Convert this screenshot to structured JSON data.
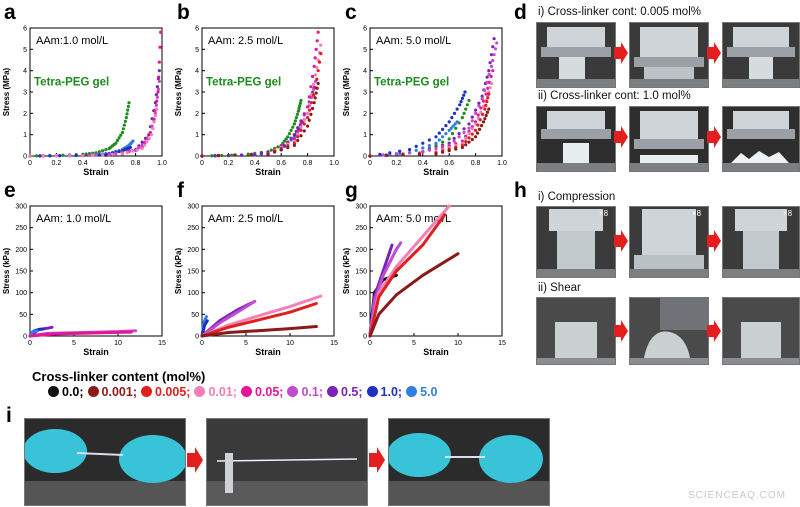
{
  "panel_letters": {
    "a": "a",
    "b": "b",
    "c": "c",
    "d": "d",
    "e": "e",
    "f": "f",
    "g": "g",
    "h": "h",
    "i": "i"
  },
  "legend": {
    "title": "Cross-linker content (mol%)",
    "items": [
      {
        "label": "0.0;",
        "color": "#111111"
      },
      {
        "label": "0.001;",
        "color": "#8b1a1a"
      },
      {
        "label": "0.005;",
        "color": "#e0201c"
      },
      {
        "label": "0.01;",
        "color": "#f47fb6"
      },
      {
        "label": "0.05;",
        "color": "#e5159a"
      },
      {
        "label": "0.1;",
        "color": "#c04ad0"
      },
      {
        "label": "0.5;",
        "color": "#7a22b8"
      },
      {
        "label": "1.0;",
        "color": "#1e2fc4"
      },
      {
        "label": "5.0",
        "color": "#2f7fe0"
      }
    ]
  },
  "photos": {
    "d_i_caption": "i) Cross-linker cont: 0.005 mol%",
    "d_ii_caption": "ii) Cross-linker cont: 1.0 mol%",
    "h_i_caption": "i) Compression",
    "h_ii_caption": "ii) Shear",
    "h_zoom": "×8"
  },
  "watermark": "SCIENCEAQ.COM",
  "chart_data": [
    {
      "id": "a",
      "type": "scatter",
      "annotation": "AAm:1.0 mol/L",
      "curve_label": "Tetra-PEG gel",
      "xlabel": "Strain",
      "ylabel": "Stress (MPa)",
      "xlim": [
        0,
        1
      ],
      "ylim": [
        0,
        6
      ],
      "xticks": [
        "0",
        "0.2",
        "0.4",
        "0.6",
        "0.8",
        "1.0"
      ],
      "yticks": [
        "0",
        "1",
        "2",
        "3",
        "4",
        "5",
        "6"
      ],
      "series": [
        {
          "name": "Tetra-PEG gel",
          "color": "#1f8a1f",
          "x": [
            0,
            0.2,
            0.4,
            0.5,
            0.6,
            0.65,
            0.7,
            0.73,
            0.75
          ],
          "y": [
            0,
            0.02,
            0.08,
            0.15,
            0.35,
            0.6,
            1.1,
            1.8,
            2.5
          ]
        },
        {
          "name": "5.0",
          "color": "#2f7fe0",
          "x": [
            0,
            0.3,
            0.5,
            0.6,
            0.7,
            0.75,
            0.78
          ],
          "y": [
            0,
            0.02,
            0.06,
            0.12,
            0.3,
            0.5,
            0.7
          ]
        },
        {
          "name": "1.0",
          "color": "#1e2fc4",
          "x": [
            0,
            0.3,
            0.5,
            0.6,
            0.7,
            0.76
          ],
          "y": [
            0,
            0.02,
            0.05,
            0.1,
            0.25,
            0.4
          ]
        },
        {
          "name": "0.5",
          "color": "#7a22b8",
          "x": [
            0,
            0.4,
            0.6,
            0.8,
            0.9,
            0.95,
            0.98
          ],
          "y": [
            0,
            0.03,
            0.08,
            0.3,
            1.0,
            2.5,
            4.0
          ]
        },
        {
          "name": "0.1",
          "color": "#c04ad0",
          "x": [
            0,
            0.4,
            0.6,
            0.8,
            0.9,
            0.95,
            0.98
          ],
          "y": [
            0,
            0.02,
            0.06,
            0.25,
            0.8,
            2.0,
            3.5
          ]
        },
        {
          "name": "0.05",
          "color": "#e5159a",
          "x": [
            0,
            0.4,
            0.7,
            0.85,
            0.93,
            0.97,
            0.99
          ],
          "y": [
            0,
            0.02,
            0.1,
            0.4,
            1.3,
            3.0,
            5.8
          ]
        },
        {
          "name": "0.01",
          "color": "#f47fb6",
          "x": [
            0,
            0.4,
            0.7,
            0.85,
            0.92,
            0.96
          ],
          "y": [
            0,
            0.02,
            0.1,
            0.35,
            1.0,
            2.2
          ]
        }
      ]
    },
    {
      "id": "b",
      "type": "scatter",
      "annotation": "AAm: 2.5 mol/L",
      "curve_label": "Tetra-PEG gel",
      "xlabel": "Strain",
      "ylabel": "Stress (MPa)",
      "xlim": [
        0,
        1
      ],
      "ylim": [
        0,
        6
      ],
      "xticks": [
        "0",
        "0.2",
        "0.4",
        "0.6",
        "0.8",
        "1.0"
      ],
      "yticks": [
        "0",
        "1",
        "2",
        "3",
        "4",
        "5",
        "6"
      ],
      "series": [
        {
          "name": "Tetra-PEG gel",
          "color": "#1f8a1f",
          "x": [
            0,
            0.3,
            0.5,
            0.6,
            0.65,
            0.7,
            0.73,
            0.75
          ],
          "y": [
            0,
            0.05,
            0.2,
            0.5,
            0.9,
            1.5,
            2.1,
            2.6
          ]
        },
        {
          "name": "5.0",
          "color": "#2f7fe0",
          "x": [
            0,
            0.4,
            0.6,
            0.7,
            0.74
          ],
          "y": [
            0,
            0.05,
            0.3,
            0.9,
            1.3
          ]
        },
        {
          "name": "1.0",
          "color": "#1e2fc4",
          "x": [
            0,
            0.4,
            0.6,
            0.7,
            0.76
          ],
          "y": [
            0,
            0.05,
            0.3,
            1.0,
            1.6
          ]
        },
        {
          "name": "0.5",
          "color": "#7a22b8",
          "x": [
            0,
            0.4,
            0.6,
            0.7,
            0.8,
            0.85
          ],
          "y": [
            0,
            0.05,
            0.3,
            1.0,
            2.3,
            3.2
          ]
        },
        {
          "name": "0.1",
          "color": "#c04ad0",
          "x": [
            0,
            0.5,
            0.7,
            0.8,
            0.86
          ],
          "y": [
            0,
            0.1,
            0.8,
            2.0,
            3.5
          ]
        },
        {
          "name": "0.05",
          "color": "#e5159a",
          "x": [
            0,
            0.5,
            0.7,
            0.8,
            0.85,
            0.88
          ],
          "y": [
            0,
            0.1,
            0.8,
            2.3,
            4.2,
            5.8
          ]
        },
        {
          "name": "0.01",
          "color": "#f47fb6",
          "x": [
            0,
            0.5,
            0.7,
            0.8,
            0.86,
            0.9
          ],
          "y": [
            0,
            0.1,
            0.7,
            2.0,
            3.8,
            5.2
          ]
        },
        {
          "name": "0.005",
          "color": "#e0201c",
          "x": [
            0,
            0.5,
            0.7,
            0.8,
            0.86,
            0.9
          ],
          "y": [
            0,
            0.1,
            0.6,
            1.8,
            3.2,
            4.8
          ]
        },
        {
          "name": "0.001",
          "color": "#8b1a1a",
          "x": [
            0,
            0.5,
            0.7,
            0.8,
            0.85,
            0.88
          ],
          "y": [
            0,
            0.08,
            0.5,
            1.4,
            2.5,
            3.4
          ]
        }
      ]
    },
    {
      "id": "c",
      "type": "scatter",
      "annotation": "AAm: 5.0 mol/L",
      "curve_label": "Tetra-PEG gel",
      "xlabel": "Strain",
      "ylabel": "Stress (MPa)",
      "xlim": [
        0,
        1
      ],
      "ylim": [
        0,
        6
      ],
      "xticks": [
        "0",
        "0.2",
        "0.4",
        "0.6",
        "0.8",
        "1.0"
      ],
      "yticks": [
        "0",
        "1",
        "2",
        "3",
        "4",
        "5",
        "6"
      ],
      "series": [
        {
          "name": "Tetra-PEG gel",
          "color": "#1f8a1f",
          "x": [
            0,
            0.4,
            0.6,
            0.7,
            0.75
          ],
          "y": [
            0,
            0.2,
            0.8,
            1.8,
            2.6
          ]
        },
        {
          "name": "5.0",
          "color": "#2f7fe0",
          "x": [
            0,
            0.3,
            0.5,
            0.6,
            0.66
          ],
          "y": [
            0,
            0.15,
            0.6,
            1.2,
            1.6
          ]
        },
        {
          "name": "1.0",
          "color": "#1e2fc4",
          "x": [
            0,
            0.3,
            0.5,
            0.6,
            0.68,
            0.72
          ],
          "y": [
            0,
            0.3,
            0.9,
            1.6,
            2.4,
            3.0
          ]
        },
        {
          "name": "0.5",
          "color": "#7a22b8",
          "x": [
            0,
            0.4,
            0.6,
            0.75,
            0.85,
            0.9,
            0.94
          ],
          "y": [
            0,
            0.2,
            0.6,
            1.5,
            2.8,
            4.0,
            5.5
          ]
        },
        {
          "name": "0.1",
          "color": "#c04ad0",
          "x": [
            0,
            0.4,
            0.6,
            0.75,
            0.85,
            0.92,
            0.96
          ],
          "y": [
            0,
            0.2,
            0.5,
            1.3,
            2.7,
            4.2,
            5.3
          ]
        },
        {
          "name": "0.05",
          "color": "#e5159a",
          "x": [
            0,
            0.5,
            0.7,
            0.8,
            0.88,
            0.93
          ],
          "y": [
            0,
            0.2,
            0.7,
            1.6,
            2.9,
            4.0
          ]
        },
        {
          "name": "0.01",
          "color": "#f47fb6",
          "x": [
            0,
            0.5,
            0.7,
            0.8,
            0.88,
            0.92
          ],
          "y": [
            0,
            0.2,
            0.6,
            1.5,
            2.6,
            3.4
          ]
        },
        {
          "name": "0.005",
          "color": "#e0201c",
          "x": [
            0,
            0.5,
            0.7,
            0.8,
            0.87,
            0.9
          ],
          "y": [
            0,
            0.15,
            0.5,
            1.2,
            2.2,
            2.9
          ]
        },
        {
          "name": "0.001",
          "color": "#8b1a1a",
          "x": [
            0,
            0.5,
            0.7,
            0.8,
            0.86,
            0.9
          ],
          "y": [
            0,
            0.1,
            0.4,
            0.9,
            1.6,
            2.2
          ]
        }
      ]
    },
    {
      "id": "e",
      "type": "line",
      "annotation": "AAm: 1.0 mol/L",
      "xlabel": "Strain",
      "ylabel": "Stress (kPa)",
      "xlim": [
        0,
        15
      ],
      "ylim": [
        0,
        300
      ],
      "xticks": [
        "0",
        "5",
        "10",
        "15"
      ],
      "yticks": [
        "0",
        "50",
        "100",
        "150",
        "200",
        "250",
        "300"
      ],
      "series": [
        {
          "name": "0.5",
          "color": "#7a22b8",
          "x": [
            0,
            1,
            2,
            2.5
          ],
          "y": [
            0,
            15,
            18,
            20
          ]
        },
        {
          "name": "1.0",
          "color": "#1e2fc4",
          "x": [
            0,
            0.5,
            1,
            1.5
          ],
          "y": [
            0,
            12,
            15,
            16
          ]
        },
        {
          "name": "5.0",
          "color": "#2f7fe0",
          "x": [
            0,
            0.3,
            0.8
          ],
          "y": [
            0,
            10,
            12
          ]
        },
        {
          "name": "0.1",
          "color": "#c04ad0",
          "x": [
            0,
            2,
            6,
            10,
            12
          ],
          "y": [
            0,
            6,
            8,
            10,
            12
          ]
        },
        {
          "name": "0.05",
          "color": "#e5159a",
          "x": [
            0,
            3,
            7,
            11.5
          ],
          "y": [
            0,
            5,
            7,
            9
          ]
        }
      ]
    },
    {
      "id": "f",
      "type": "line",
      "annotation": "AAm: 2.5 mol/L",
      "xlabel": "Strain",
      "ylabel": "Stress (kPa)",
      "xlim": [
        0,
        15
      ],
      "ylim": [
        0,
        300
      ],
      "xticks": [
        "0",
        "5",
        "10",
        "15"
      ],
      "yticks": [
        "0",
        "50",
        "100",
        "150",
        "200",
        "250",
        "300"
      ],
      "series": [
        {
          "name": "5.0",
          "color": "#2f7fe0",
          "x": [
            0,
            0.2,
            0.5
          ],
          "y": [
            0,
            30,
            45
          ]
        },
        {
          "name": "1.0",
          "color": "#1e2fc4",
          "x": [
            0,
            0.3,
            0.6
          ],
          "y": [
            0,
            25,
            35
          ]
        },
        {
          "name": "0.5",
          "color": "#7a22b8",
          "x": [
            0,
            2,
            4,
            5.5
          ],
          "y": [
            0,
            35,
            60,
            75
          ]
        },
        {
          "name": "0.1",
          "color": "#c04ad0",
          "x": [
            0,
            2,
            4,
            6
          ],
          "y": [
            0,
            30,
            55,
            80
          ]
        },
        {
          "name": "0.01",
          "color": "#f47fb6",
          "x": [
            0,
            3,
            7,
            10,
            13.5
          ],
          "y": [
            0,
            25,
            50,
            68,
            92
          ]
        },
        {
          "name": "0.005",
          "color": "#e0201c",
          "x": [
            0,
            3,
            7,
            10,
            13
          ],
          "y": [
            0,
            20,
            40,
            55,
            75
          ]
        },
        {
          "name": "0.001",
          "color": "#8b1a1a",
          "x": [
            0,
            3,
            7,
            10,
            13
          ],
          "y": [
            0,
            8,
            13,
            17,
            22
          ]
        }
      ]
    },
    {
      "id": "g",
      "type": "line",
      "annotation": "AAm: 5.0 mol/L",
      "xlabel": "Strain",
      "ylabel": "Stress (kPa)",
      "xlim": [
        0,
        15
      ],
      "ylim": [
        0,
        300
      ],
      "xticks": [
        "0",
        "5",
        "10",
        "15"
      ],
      "yticks": [
        "0",
        "50",
        "100",
        "150",
        "200",
        "250",
        "300"
      ],
      "series": [
        {
          "name": "0.0",
          "color": "#111111",
          "x": [
            0,
            0.5,
            1.5,
            3
          ],
          "y": [
            0,
            100,
            130,
            140
          ]
        },
        {
          "name": "1.0",
          "color": "#1e2fc4",
          "x": [
            0,
            0.3,
            0.8
          ],
          "y": [
            0,
            60,
            100
          ]
        },
        {
          "name": "0.5",
          "color": "#7a22b8",
          "x": [
            0,
            0.5,
            1.5,
            2.5
          ],
          "y": [
            0,
            90,
            150,
            210
          ]
        },
        {
          "name": "0.1",
          "color": "#c04ad0",
          "x": [
            0,
            0.5,
            1.5,
            3,
            3.5
          ],
          "y": [
            0,
            80,
            140,
            200,
            215
          ]
        },
        {
          "name": "0.01",
          "color": "#f47fb6",
          "x": [
            0,
            1,
            3,
            6,
            9
          ],
          "y": [
            0,
            100,
            160,
            230,
            300
          ]
        },
        {
          "name": "0.005",
          "color": "#e0201c",
          "x": [
            0,
            1,
            3,
            6,
            8.5
          ],
          "y": [
            0,
            90,
            150,
            210,
            280
          ]
        },
        {
          "name": "0.001",
          "color": "#8b1a1a",
          "x": [
            0,
            1,
            3,
            6,
            10
          ],
          "y": [
            0,
            50,
            95,
            140,
            190
          ]
        }
      ]
    }
  ]
}
